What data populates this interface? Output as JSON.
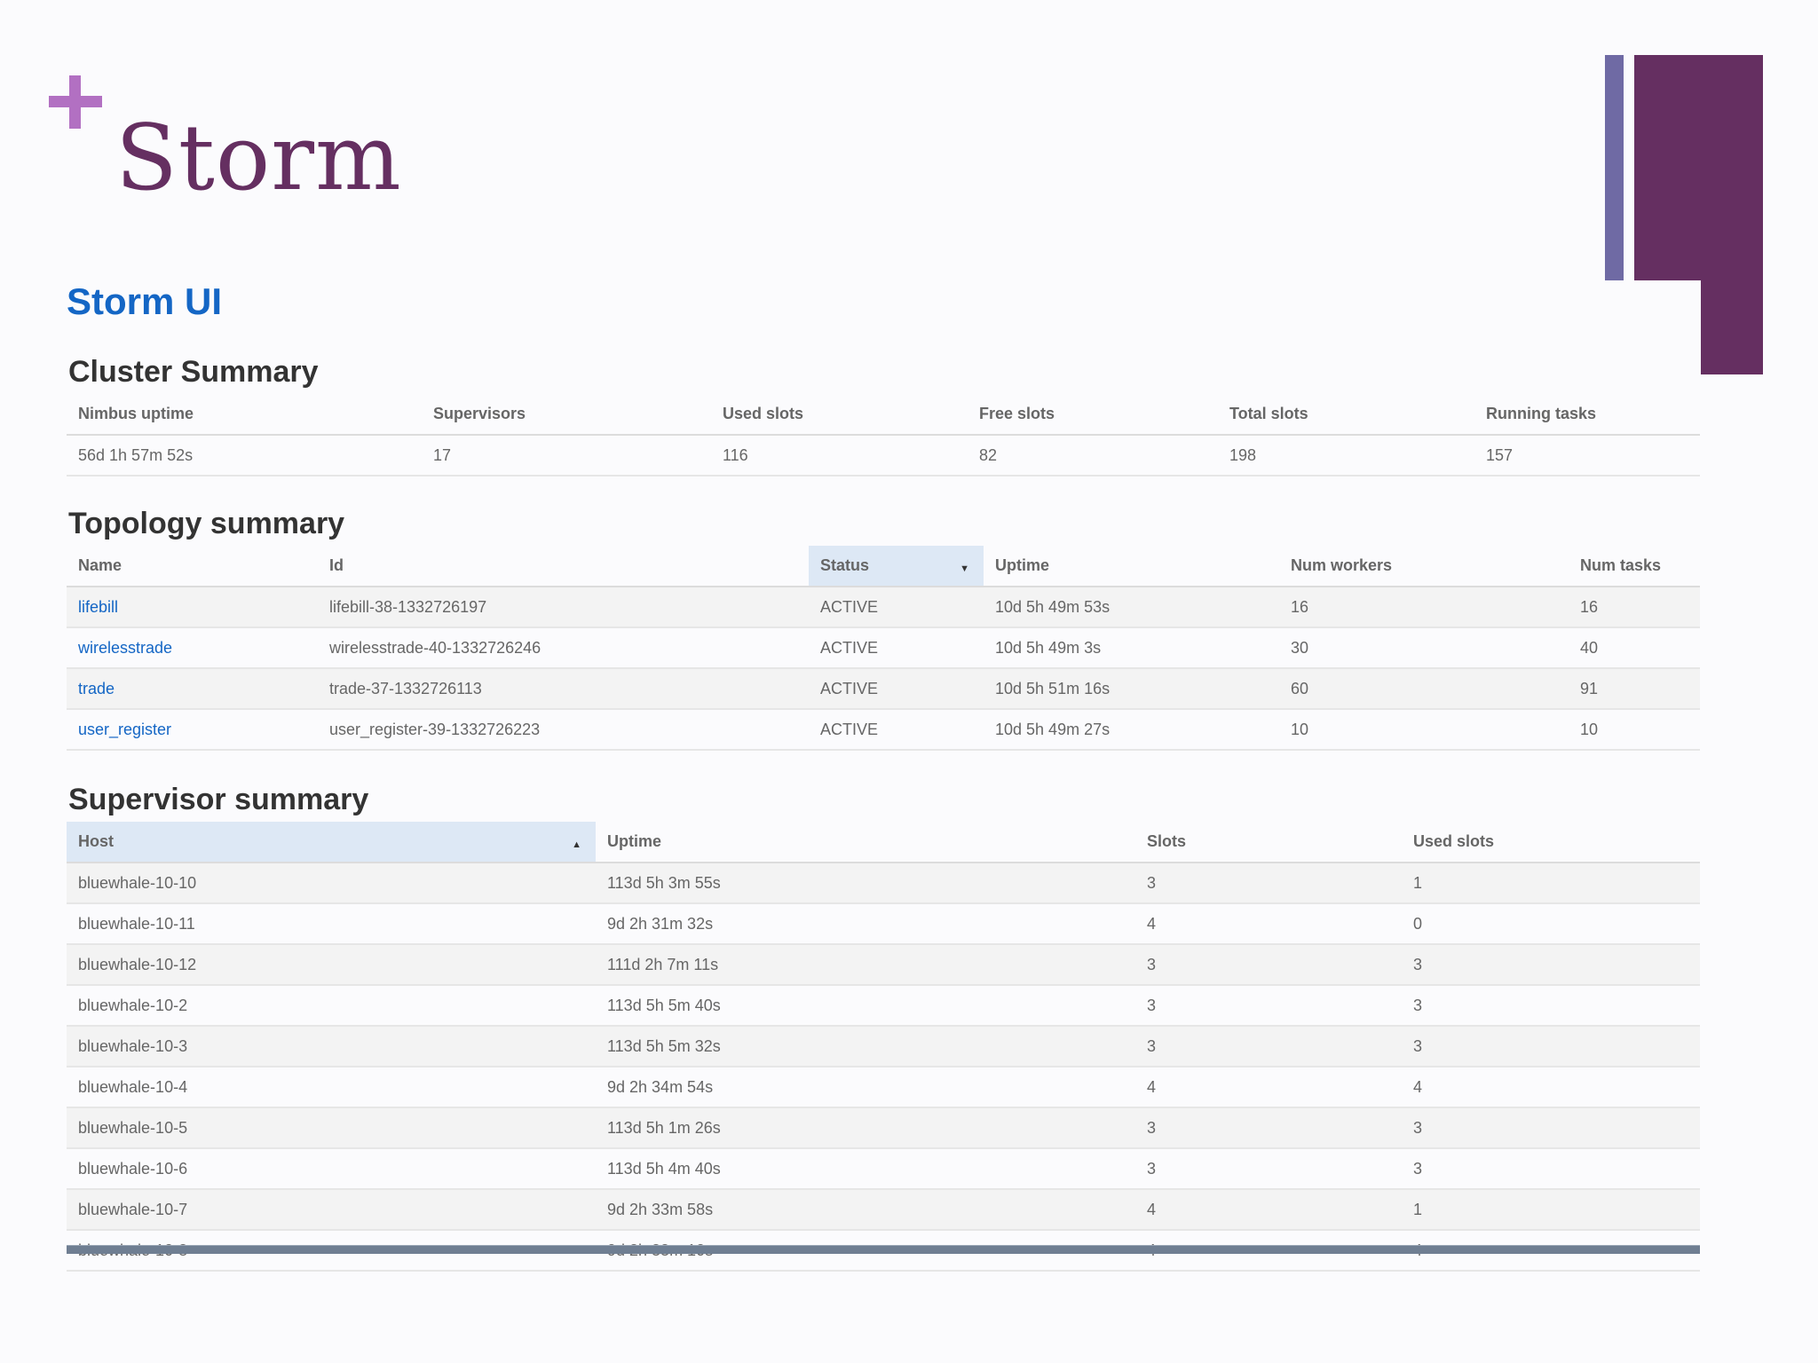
{
  "slide": {
    "title": "Storm"
  },
  "ui": {
    "title": "Storm UI"
  },
  "cluster": {
    "title": "Cluster Summary",
    "columns": [
      "Nimbus uptime",
      "Supervisors",
      "Used slots",
      "Free slots",
      "Total slots",
      "Running tasks"
    ],
    "row": [
      "56d 1h 57m 52s",
      "17",
      "116",
      "82",
      "198",
      "157"
    ]
  },
  "topology": {
    "title": "Topology summary",
    "columns": [
      "Name",
      "Id",
      "Status",
      "Uptime",
      "Num workers",
      "Num tasks"
    ],
    "sorted_column": "Status",
    "rows": [
      [
        "lifebill",
        "lifebill-38-1332726197",
        "ACTIVE",
        "10d 5h 49m 53s",
        "16",
        "16"
      ],
      [
        "wirelesstrade",
        "wirelesstrade-40-1332726246",
        "ACTIVE",
        "10d 5h 49m 3s",
        "30",
        "40"
      ],
      [
        "trade",
        "trade-37-1332726113",
        "ACTIVE",
        "10d 5h 51m 16s",
        "60",
        "91"
      ],
      [
        "user_register",
        "user_register-39-1332726223",
        "ACTIVE",
        "10d 5h 49m 27s",
        "10",
        "10"
      ]
    ]
  },
  "supervisor": {
    "title": "Supervisor summary",
    "columns": [
      "Host",
      "Uptime",
      "Slots",
      "Used slots"
    ],
    "sorted_column": "Host",
    "rows": [
      [
        "bluewhale-10-10",
        "113d 5h 3m 55s",
        "3",
        "1"
      ],
      [
        "bluewhale-10-11",
        "9d 2h 31m 32s",
        "4",
        "0"
      ],
      [
        "bluewhale-10-12",
        "111d 2h 7m 11s",
        "3",
        "3"
      ],
      [
        "bluewhale-10-2",
        "113d 5h 5m 40s",
        "3",
        "3"
      ],
      [
        "bluewhale-10-3",
        "113d 5h 5m 32s",
        "3",
        "3"
      ],
      [
        "bluewhale-10-4",
        "9d 2h 34m 54s",
        "4",
        "4"
      ],
      [
        "bluewhale-10-5",
        "113d 5h 1m 26s",
        "3",
        "3"
      ],
      [
        "bluewhale-10-6",
        "113d 5h 4m 40s",
        "3",
        "3"
      ],
      [
        "bluewhale-10-7",
        "9d 2h 33m 58s",
        "4",
        "1"
      ],
      [
        "bluewhale-10-8",
        "9d 2h 33m 10s",
        "4",
        "4"
      ]
    ]
  },
  "colors": {
    "accent": "#652f61",
    "secondary": "#6f6aa4",
    "plus": "#b270c2",
    "link": "#1466c5"
  }
}
